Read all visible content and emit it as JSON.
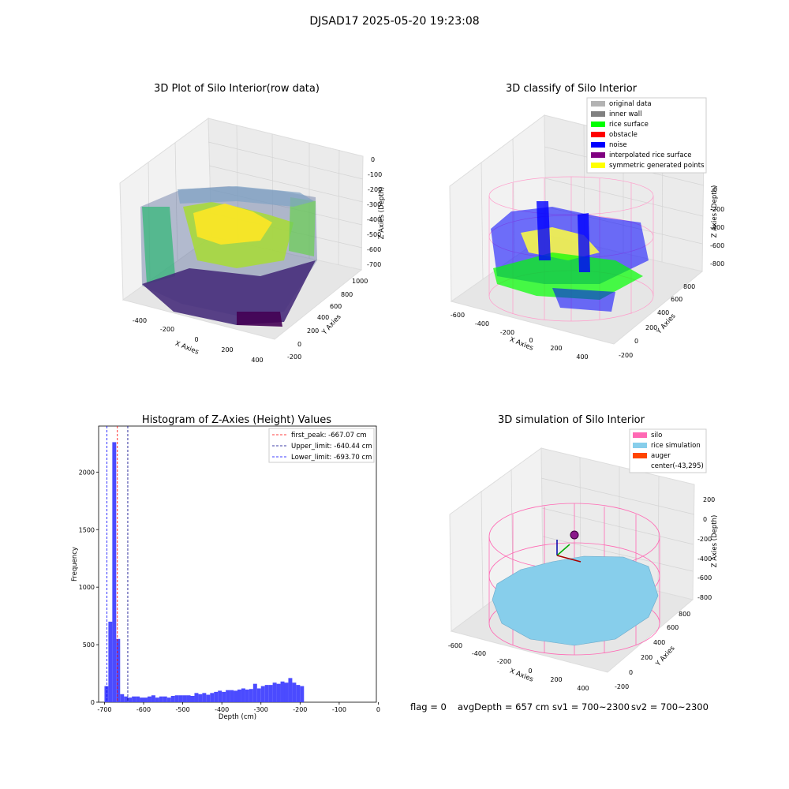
{
  "suptitle": "DJSAD17 2025-05-20 19:23:08",
  "plots": {
    "raw": {
      "title": "3D Plot of Silo Interior(row data)",
      "x_label": "X Axies",
      "y_label": "Y Axies",
      "z_label": "Z Axies (Depth)",
      "x_ticks": [
        "-400",
        "-200",
        "0",
        "200",
        "400"
      ],
      "y_ticks": [
        "-200",
        "0",
        "200",
        "400",
        "600",
        "800",
        "1000"
      ],
      "z_ticks": [
        "0",
        "-100",
        "-200",
        "-300",
        "-400",
        "-500",
        "-600",
        "-700"
      ]
    },
    "classify": {
      "title": "3D classify of Silo Interior",
      "x_label": "X Axies",
      "y_label": "Y Axies",
      "z_label": "Z Axies (Depth)",
      "x_ticks": [
        "-600",
        "-400",
        "-200",
        "0",
        "200",
        "400"
      ],
      "y_ticks": [
        "-200",
        "0",
        "200",
        "400",
        "600",
        "800"
      ],
      "z_ticks": [
        "0",
        "-200",
        "-400",
        "-600",
        "-800"
      ],
      "legend": [
        {
          "label": "original data",
          "color": "#b3b3b3"
        },
        {
          "label": "inner wall",
          "color": "#808080"
        },
        {
          "label": "rice surface",
          "color": "#00ff00"
        },
        {
          "label": "obstacle",
          "color": "#ff0000"
        },
        {
          "label": "noise",
          "color": "#0000ff"
        },
        {
          "label": "interpolated rice surface",
          "color": "#800080"
        },
        {
          "label": "symmetric generated points",
          "color": "#ffff00"
        }
      ]
    },
    "histogram": {
      "title": "Histogram of Z-Axies (Height) Values",
      "x_label": "Depth (cm)",
      "y_label": "Frequency",
      "x_ticks": [
        "-700",
        "-600",
        "-500",
        "-400",
        "-300",
        "-200",
        "-100",
        "0"
      ],
      "y_ticks": [
        "0",
        "500",
        "1000",
        "1500",
        "2000"
      ],
      "legend": [
        {
          "label": "first_peak: -667.07 cm",
          "color": "#ff0000"
        },
        {
          "label": "Upper_limit: -640.44 cm",
          "color": "#00008b"
        },
        {
          "label": "Lower_limit: -693.70 cm",
          "color": "#0000ff"
        }
      ]
    },
    "simulation": {
      "title": "3D simulation of Silo Interior",
      "x_label": "X Axies",
      "y_label": "Y Axies",
      "z_label": "Z Axies (Depth)",
      "x_ticks": [
        "-600",
        "-400",
        "-200",
        "0",
        "200",
        "400"
      ],
      "y_ticks": [
        "-200",
        "0",
        "200",
        "400",
        "600",
        "800"
      ],
      "z_ticks": [
        "200",
        "0",
        "-200",
        "-400",
        "-600",
        "-800"
      ],
      "legend": [
        {
          "label": "silo",
          "color": "#ff69b4"
        },
        {
          "label": "rice simulation",
          "color": "#87ceeb"
        },
        {
          "label": "auger",
          "color": "#ff4500"
        },
        {
          "label": "center(-43,295)",
          "color": ""
        }
      ]
    }
  },
  "status": {
    "flag": "flag = 0",
    "avg_depth": "avgDepth = 657 cm",
    "sv1": "sv1 = 700~2300",
    "sv2": "sv2 = 700~2300"
  },
  "chart_data": [
    {
      "type": "scatter",
      "title": "3D Plot of Silo Interior(row data)",
      "xlabel": "X Axies",
      "ylabel": "Y Axies",
      "zlabel": "Z Axies (Depth)",
      "xlim": [
        -500,
        500
      ],
      "ylim": [
        -200,
        1000
      ],
      "zlim": [
        -700,
        0
      ],
      "colormap": "viridis",
      "grid": true
    },
    {
      "type": "scatter",
      "title": "3D classify of Silo Interior",
      "xlabel": "X Axies",
      "ylabel": "Y Axies",
      "zlabel": "Z Axies (Depth)",
      "xlim": [
        -600,
        400
      ],
      "ylim": [
        -200,
        800
      ],
      "zlim": [
        -800,
        0
      ],
      "series": [
        {
          "name": "original data"
        },
        {
          "name": "inner wall"
        },
        {
          "name": "rice surface"
        },
        {
          "name": "obstacle"
        },
        {
          "name": "noise"
        },
        {
          "name": "interpolated rice surface"
        },
        {
          "name": "symmetric generated points"
        }
      ],
      "legend": "top-right",
      "grid": true
    },
    {
      "type": "bar",
      "title": "Histogram of Z-Axies (Height) Values",
      "xlabel": "Depth (cm)",
      "ylabel": "Frequency",
      "xlim": [
        -715,
        -5
      ],
      "ylim": [
        0,
        2400
      ],
      "bin_width": 10,
      "bins_start": [
        -700,
        -690,
        -680,
        -670,
        -660,
        -650,
        -640,
        -630,
        -620,
        -610,
        -600,
        -590,
        -580,
        -570,
        -560,
        -550,
        -540,
        -530,
        -520,
        -510,
        -500,
        -490,
        -480,
        -470,
        -460,
        -450,
        -440,
        -430,
        -420,
        -410,
        -400,
        -390,
        -380,
        -370,
        -360,
        -350,
        -340,
        -330,
        -320,
        -310,
        -300,
        -290,
        -280,
        -270,
        -260,
        -250,
        -240,
        -230,
        -220,
        -210,
        -200,
        -190,
        -180,
        -170,
        -160,
        -150,
        -140,
        -130,
        -120,
        -110,
        -100,
        -90,
        -80,
        -70,
        -60,
        -50,
        -40
      ],
      "values": [
        140,
        700,
        2260,
        550,
        70,
        50,
        40,
        50,
        50,
        40,
        40,
        50,
        60,
        40,
        50,
        50,
        40,
        55,
        60,
        60,
        60,
        60,
        55,
        80,
        70,
        80,
        65,
        80,
        90,
        100,
        90,
        105,
        105,
        100,
        110,
        120,
        110,
        115,
        160,
        120,
        140,
        150,
        150,
        170,
        160,
        180,
        170,
        210,
        170,
        150,
        140,
        0,
        0,
        0,
        0,
        0,
        0,
        0,
        0,
        0,
        0,
        0,
        0,
        0,
        0,
        0,
        0
      ],
      "vlines": [
        {
          "name": "first_peak: -667.07 cm",
          "x": -667.07,
          "style": "dashed",
          "color": "#ff0000"
        },
        {
          "name": "Upper_limit: -640.44 cm",
          "x": -640.44,
          "style": "dashed",
          "color": "#00008b"
        },
        {
          "name": "Lower_limit: -693.70 cm",
          "x": -693.7,
          "style": "dashed",
          "color": "#0000ff"
        }
      ],
      "legend": "top-right",
      "grid": false,
      "bar_color": "#4b4bff"
    },
    {
      "type": "scatter",
      "title": "3D simulation of Silo Interior",
      "xlabel": "X Axies",
      "ylabel": "Y Axies",
      "zlabel": "Z Axies (Depth)",
      "xlim": [
        -600,
        400
      ],
      "ylim": [
        -200,
        800
      ],
      "zlim": [
        -800,
        200
      ],
      "series": [
        {
          "name": "silo"
        },
        {
          "name": "rice simulation"
        },
        {
          "name": "auger"
        }
      ],
      "center": [
        -43,
        295
      ],
      "legend": "top-right",
      "grid": true
    }
  ]
}
